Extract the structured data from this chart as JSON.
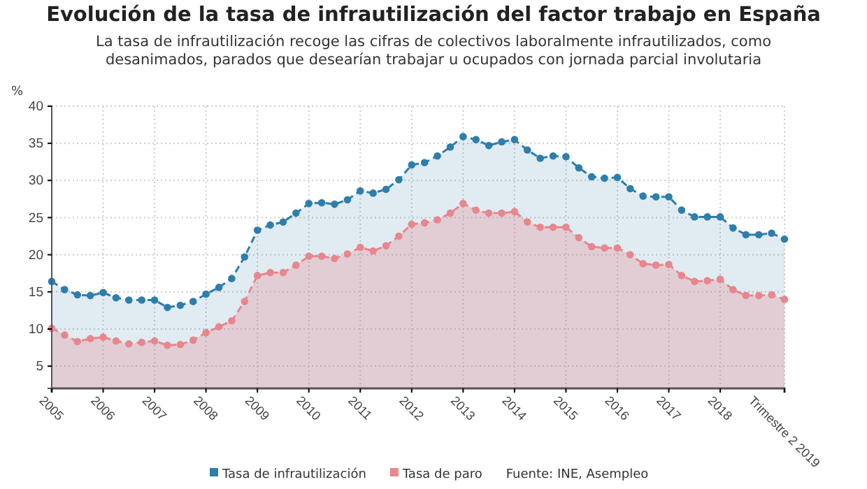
{
  "chart_data": {
    "type": "area",
    "title": "Evolución de la tasa de infrautilización del factor trabajo en España",
    "subtitle": "La tasa de infrautilización recoge las cifras de colectivos laboralmente infrautilizados, como desanimados, parados que desearían trabajar u ocupados con jornada parcial involutaria",
    "ylabel": "%",
    "categories": [
      "2005",
      null,
      null,
      null,
      "2006",
      null,
      null,
      null,
      "2007",
      null,
      null,
      null,
      "2008",
      null,
      null,
      null,
      "2009",
      null,
      null,
      null,
      "2010",
      null,
      null,
      null,
      "2011",
      null,
      null,
      null,
      "2012",
      null,
      null,
      null,
      "2013",
      null,
      null,
      null,
      "2014",
      null,
      null,
      null,
      "2015",
      null,
      null,
      null,
      "2016",
      null,
      null,
      null,
      "2017",
      null,
      null,
      null,
      "2018",
      null,
      null,
      null,
      null,
      "Trimestre 2 2019"
    ],
    "series": [
      {
        "name": "Tasa de infrautilización",
        "color": "#2e7eab",
        "values": [
          16.4,
          15.3,
          14.6,
          14.5,
          14.9,
          14.2,
          13.9,
          13.9,
          13.9,
          12.9,
          13.2,
          13.7,
          14.7,
          15.6,
          16.8,
          19.7,
          23.3,
          24.0,
          24.4,
          25.6,
          26.9,
          27.0,
          26.8,
          27.4,
          28.6,
          28.3,
          28.8,
          30.1,
          32.1,
          32.4,
          33.3,
          34.5,
          35.9,
          35.5,
          34.7,
          35.2,
          35.5,
          34.1,
          33.0,
          33.3,
          33.2,
          31.7,
          30.5,
          30.3,
          30.4,
          28.9,
          27.9,
          27.8,
          27.8,
          26.0,
          25.1,
          25.1,
          25.1,
          23.6,
          22.7,
          22.7,
          22.9,
          22.1
        ]
      },
      {
        "name": "Tasa de paro",
        "color": "#e8868e",
        "values": [
          10.1,
          9.2,
          8.3,
          8.7,
          8.9,
          8.4,
          8.0,
          8.2,
          8.4,
          7.8,
          7.9,
          8.5,
          9.5,
          10.3,
          11.1,
          13.7,
          17.2,
          17.6,
          17.6,
          18.6,
          19.8,
          19.8,
          19.5,
          20.1,
          21.0,
          20.5,
          21.2,
          22.5,
          24.1,
          24.3,
          24.7,
          25.6,
          26.9,
          26.0,
          25.6,
          25.6,
          25.8,
          24.4,
          23.7,
          23.7,
          23.7,
          22.3,
          21.1,
          20.9,
          20.9,
          20.0,
          18.8,
          18.6,
          18.7,
          17.2,
          16.4,
          16.5,
          16.7,
          15.3,
          14.5,
          14.5,
          14.6,
          14.0
        ]
      }
    ],
    "ylim": [
      2,
      40
    ],
    "yticks": [
      5,
      10,
      15,
      20,
      25,
      30,
      35,
      40
    ],
    "grid": true,
    "legend": "bottom",
    "marker": "circle",
    "line_style": "dashed",
    "annotations": [
      "Fuente: INE, Asempleo"
    ]
  }
}
